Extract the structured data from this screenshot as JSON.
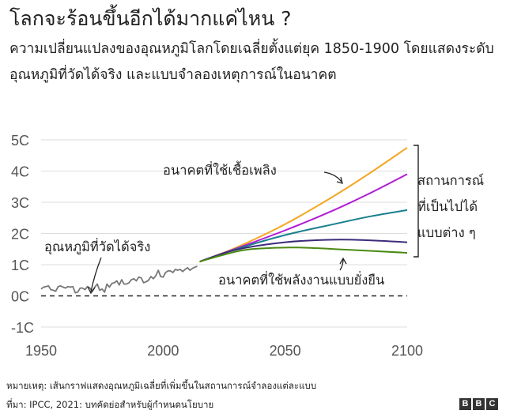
{
  "title": "โลกจะร้อนขึ้นอีกได้มากแค่ไหน ?",
  "subtitle": "ความเปลี่ยนแปลงของอุณหภูมิโลกโดยเฉลี่ยตั้งแต่ยุค 1850-1900 โดยแสดงระดับอุณหภูมิที่วัดได้จริง และแบบจำลองเหตุการณ์ในอนาคต",
  "footer": {
    "note": "หมายเหตุ: เส้นกราฟแสดงอุณหภูมิเฉลี่ยที่เพิ่มขึ้นในสถานการณ์จำลองแต่ละแบบ",
    "source": "ที่มา: IPCC, 2021: บทคัดย่อสำหรับผู้กำหนดนโยบาย",
    "logo": [
      "B",
      "B",
      "C"
    ]
  },
  "chart_data": {
    "type": "line",
    "xlim": [
      1950,
      2100
    ],
    "ylim": [
      -1,
      5
    ],
    "x_ticks": [
      1950,
      2000,
      2050,
      2100
    ],
    "y_ticks": [
      {
        "value": 5,
        "label": "5C"
      },
      {
        "value": 4,
        "label": "4C"
      },
      {
        "value": 3,
        "label": "3C"
      },
      {
        "value": 2,
        "label": "2C"
      },
      {
        "value": 1,
        "label": "1C"
      },
      {
        "value": 0,
        "label": "0C"
      },
      {
        "value": -1,
        "label": "-1C"
      }
    ],
    "baseline": {
      "value": 0,
      "style": "dashed",
      "color": "#222222"
    },
    "gridlines": true,
    "observed": {
      "label": "อุณหภูมิที่วัดได้จริง",
      "color": "#777777",
      "x": [
        1950,
        1951,
        1952,
        1953,
        1954,
        1955,
        1956,
        1957,
        1958,
        1959,
        1960,
        1961,
        1962,
        1963,
        1964,
        1965,
        1966,
        1967,
        1968,
        1969,
        1970,
        1971,
        1972,
        1973,
        1974,
        1975,
        1976,
        1977,
        1978,
        1979,
        1980,
        1981,
        1982,
        1983,
        1984,
        1985,
        1986,
        1987,
        1988,
        1989,
        1990,
        1991,
        1992,
        1993,
        1994,
        1995,
        1996,
        1997,
        1998,
        1999,
        2000,
        2001,
        2002,
        2003,
        2004,
        2005,
        2006,
        2007,
        2008,
        2009,
        2010,
        2011,
        2012,
        2013,
        2014
      ],
      "y": [
        0.22,
        0.28,
        0.3,
        0.32,
        0.2,
        0.18,
        0.15,
        0.3,
        0.32,
        0.28,
        0.25,
        0.3,
        0.28,
        0.3,
        0.1,
        0.12,
        0.25,
        0.25,
        0.2,
        0.3,
        0.25,
        0.15,
        0.28,
        0.38,
        0.18,
        0.22,
        0.12,
        0.38,
        0.28,
        0.4,
        0.42,
        0.48,
        0.35,
        0.52,
        0.38,
        0.38,
        0.42,
        0.52,
        0.55,
        0.48,
        0.6,
        0.58,
        0.42,
        0.45,
        0.5,
        0.62,
        0.55,
        0.65,
        0.82,
        0.62,
        0.6,
        0.75,
        0.8,
        0.8,
        0.75,
        0.85,
        0.82,
        0.85,
        0.78,
        0.85,
        0.9,
        0.82,
        0.88,
        0.92,
        0.95
      ]
    },
    "series": [
      {
        "color": "#f5a623",
        "x": [
          2015,
          2030,
          2050,
          2070,
          2085,
          2100
        ],
        "y": [
          1.1,
          1.55,
          2.3,
          3.2,
          3.95,
          4.75
        ]
      },
      {
        "color": "#b21bd6",
        "x": [
          2015,
          2030,
          2050,
          2070,
          2085,
          2100
        ],
        "y": [
          1.1,
          1.52,
          2.1,
          2.75,
          3.3,
          3.9
        ]
      },
      {
        "color": "#1a7f8e",
        "x": [
          2015,
          2030,
          2050,
          2070,
          2085,
          2100
        ],
        "y": [
          1.1,
          1.5,
          1.95,
          2.3,
          2.55,
          2.75
        ]
      },
      {
        "color": "#3d2b7a",
        "x": [
          2015,
          2030,
          2050,
          2070,
          2085,
          2100
        ],
        "y": [
          1.1,
          1.48,
          1.72,
          1.8,
          1.78,
          1.72
        ]
      },
      {
        "color": "#4a8a12",
        "x": [
          2015,
          2030,
          2040,
          2055,
          2075,
          2100
        ],
        "y": [
          1.1,
          1.42,
          1.52,
          1.55,
          1.48,
          1.38
        ]
      }
    ],
    "annotations": {
      "fossil": "อนาคตที่ใช้เชื้อเพลิง",
      "scenarios_line1": "สถานการณ์",
      "scenarios_line2": "ที่เป็นไปได้",
      "scenarios_line3": "แบบต่าง ๆ",
      "sustainable": "อนาคตที่ใช้พลังงานแบบยั่งยืน"
    }
  }
}
